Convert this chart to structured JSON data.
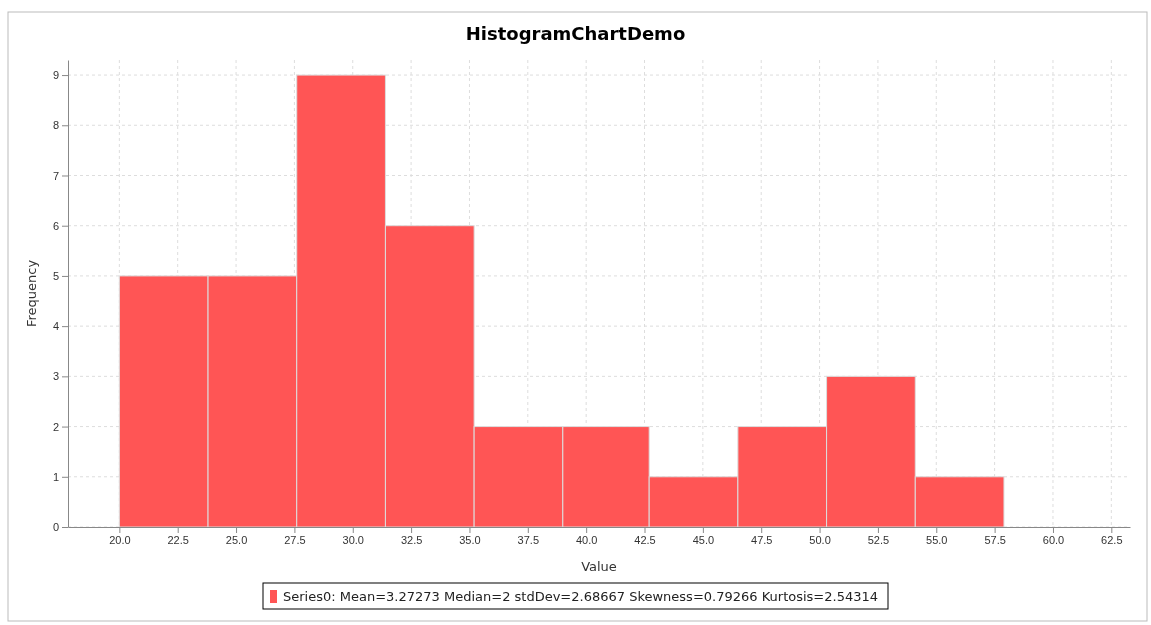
{
  "chart_data": {
    "type": "histogram",
    "title": "HistogramChartDemo",
    "xlabel": "Value",
    "ylabel": "Frequency",
    "bins": [
      20,
      23.8,
      27.6,
      31.4,
      35.2,
      39,
      42.7,
      46.5,
      50.3,
      54.1,
      57.9
    ],
    "series": [
      {
        "name": "Series0: Mean=3.27273 Median=2 stdDev=2.68667 Skewness=0.79266 Kurtosis=2.54314",
        "color": "#ff5555",
        "values": [
          5,
          5,
          9,
          6,
          2,
          2,
          1,
          2,
          3,
          1
        ]
      }
    ],
    "xlim": [
      17.8,
      63.3
    ],
    "xticks": [
      {
        "value": 20,
        "label": "20.0"
      },
      {
        "value": 22.5,
        "label": "22.5"
      },
      {
        "value": 25,
        "label": "25.0"
      },
      {
        "value": 27.5,
        "label": "27.5"
      },
      {
        "value": 30,
        "label": "30.0"
      },
      {
        "value": 32.5,
        "label": "32.5"
      },
      {
        "value": 35,
        "label": "35.0"
      },
      {
        "value": 37.5,
        "label": "37.5"
      },
      {
        "value": 40,
        "label": "40.0"
      },
      {
        "value": 42.5,
        "label": "42.5"
      },
      {
        "value": 45,
        "label": "45.0"
      },
      {
        "value": 47.5,
        "label": "47.5"
      },
      {
        "value": 50,
        "label": "50.0"
      },
      {
        "value": 52.5,
        "label": "52.5"
      },
      {
        "value": 55,
        "label": "55.0"
      },
      {
        "value": 57.5,
        "label": "57.5"
      },
      {
        "value": 60,
        "label": "60.0"
      },
      {
        "value": 62.5,
        "label": "62.5"
      }
    ],
    "ylim": [
      0,
      9.3
    ],
    "yticks": [
      0,
      1,
      2,
      3,
      4,
      5,
      6,
      7,
      8,
      9
    ],
    "grid": true,
    "legend": "bottom"
  }
}
